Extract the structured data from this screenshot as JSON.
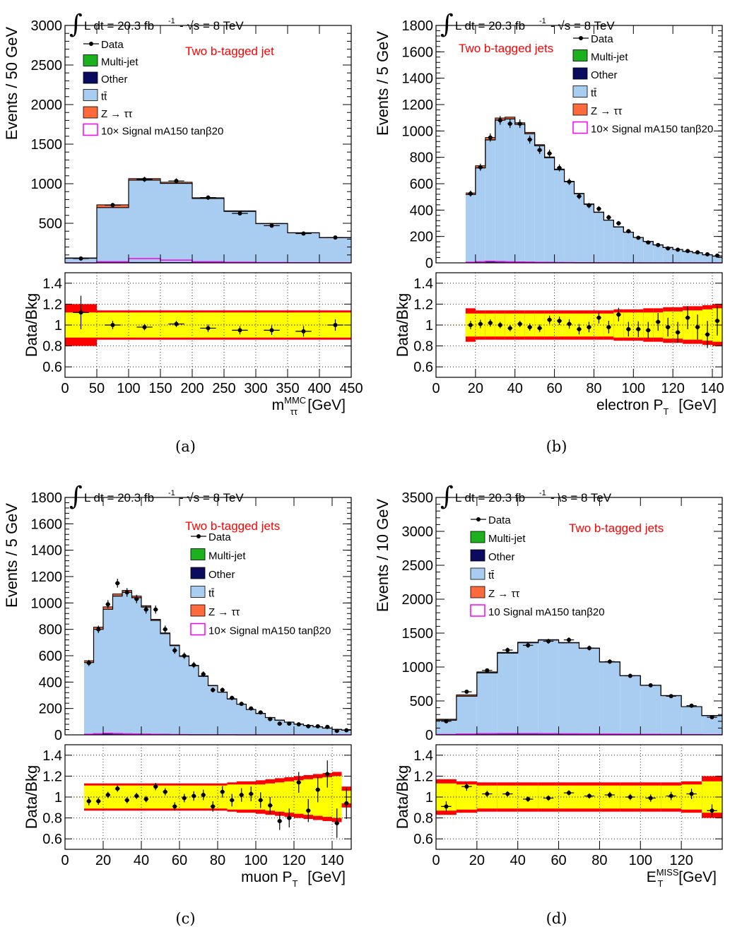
{
  "colors": {
    "ttbar": "#a8cdf0",
    "ztautau": "#ff6a3d",
    "multijet": "#1db21d",
    "other": "#0a0a5e",
    "signal": "#ff00ff",
    "band_outer": "#ff0000",
    "band_inner": "#ffff00",
    "title_red": "#ff0000"
  },
  "chart_data": [
    {
      "id": "a",
      "type": "bar",
      "caption": "(a)",
      "lumi_label": "L dt = 20.3 fb",
      "lumi_exp": "-1",
      "sqrt_label": "-  √s = 8 TeV",
      "tag_label": "Two b-tagged jet",
      "ylabel": "Events / 50 GeV",
      "ratio_ylabel": "Data/Bkg",
      "xlabel": "m",
      "xlabel_sup": "MMC",
      "xlabel_sub": "ττ",
      "xlabel_unit": "[GeV]",
      "xlim": [
        0,
        450
      ],
      "ylim": [
        0,
        3000
      ],
      "yticks": [
        500,
        1000,
        1500,
        2000,
        2500,
        3000
      ],
      "xticks": [
        0,
        50,
        100,
        150,
        200,
        250,
        300,
        350,
        400,
        450
      ],
      "ratio_ylim": [
        0.5,
        1.5
      ],
      "ratio_yticks": [
        0.6,
        0.8,
        1,
        1.2,
        1.4
      ],
      "legend": {
        "data": "Data",
        "multijet": "Multi-jet",
        "other": "Other",
        "ttbar": "tt̄",
        "ztautau": "Z → ττ",
        "signal": "10× Signal mA150 tanβ20"
      },
      "edges": [
        0,
        50,
        100,
        150,
        200,
        250,
        300,
        350,
        400,
        450
      ],
      "ttbar": [
        55,
        690,
        1035,
        995,
        805,
        645,
        490,
        375,
        315
      ],
      "ztautau": [
        5,
        35,
        20,
        15,
        10,
        6,
        4,
        3,
        2
      ],
      "other": [
        3,
        8,
        10,
        9,
        8,
        6,
        5,
        4,
        3
      ],
      "signal": [
        0,
        15,
        55,
        35,
        15,
        8,
        4,
        2,
        1
      ],
      "data_x": [
        25,
        75,
        125,
        175,
        225,
        275,
        325,
        375,
        425
      ],
      "data_y": [
        55,
        730,
        1055,
        1035,
        825,
        625,
        470,
        370,
        320
      ],
      "ratio": [
        1.12,
        1.0,
        0.98,
        1.01,
        0.97,
        0.95,
        0.95,
        0.94,
        1.0
      ],
      "ratio_err": [
        0.16,
        0.04,
        0.03,
        0.03,
        0.035,
        0.04,
        0.045,
        0.05,
        0.055
      ],
      "band_inner": [
        0.12,
        0.12,
        0.12,
        0.12,
        0.12,
        0.12,
        0.12,
        0.12,
        0.12
      ],
      "band_outer": [
        0.2,
        0.14,
        0.14,
        0.14,
        0.14,
        0.14,
        0.14,
        0.14,
        0.14
      ]
    },
    {
      "id": "b",
      "type": "bar",
      "caption": "(b)",
      "lumi_label": "L dt = 20.3 fb",
      "lumi_exp": "-1",
      "sqrt_label": "-  √s = 8 TeV",
      "tag_label": "Two b-tagged jets",
      "ylabel": "Events / 5 GeV",
      "ratio_ylabel": "Data/Bkg",
      "xlabel": "electron P",
      "xlabel_sup": "",
      "xlabel_sub": "T",
      "xlabel_unit": "[GeV]",
      "xlim": [
        0,
        145
      ],
      "ylim": [
        0,
        1800
      ],
      "yticks": [
        0,
        200,
        400,
        600,
        800,
        1000,
        1200,
        1400,
        1600,
        1800
      ],
      "xticks": [
        0,
        20,
        40,
        60,
        80,
        100,
        120,
        140
      ],
      "ratio_ylim": [
        0.5,
        1.5
      ],
      "ratio_yticks": [
        0.6,
        0.8,
        1,
        1.2,
        1.4
      ],
      "legend": {
        "data": "Data",
        "multijet": "Multi-jet",
        "other": "Other",
        "ttbar": "tt̄",
        "ztautau": "Z → ττ",
        "signal": "10× Signal mA150 tanβ20"
      },
      "edges": [
        15,
        20,
        25,
        30,
        35,
        40,
        45,
        50,
        55,
        60,
        65,
        70,
        75,
        80,
        85,
        90,
        95,
        100,
        105,
        110,
        115,
        120,
        125,
        130,
        135,
        140,
        145
      ],
      "ttbar": [
        510,
        710,
        920,
        1070,
        1080,
        1040,
        970,
        880,
        790,
        700,
        610,
        520,
        440,
        380,
        320,
        270,
        230,
        190,
        160,
        135,
        115,
        100,
        85,
        75,
        60,
        50
      ],
      "ztautau": [
        12,
        16,
        18,
        16,
        14,
        12,
        10,
        8,
        6,
        5,
        4,
        3,
        3,
        2,
        2,
        2,
        1,
        1,
        1,
        1,
        1,
        1,
        1,
        1,
        1,
        1
      ],
      "other": [
        8,
        10,
        12,
        12,
        11,
        10,
        9,
        8,
        7,
        6,
        5,
        4,
        4,
        3,
        3,
        2,
        2,
        2,
        2,
        1,
        1,
        1,
        1,
        1,
        1,
        1
      ],
      "signal": [
        5,
        9,
        12,
        10,
        8,
        6,
        5,
        4,
        3,
        2,
        2,
        1,
        1,
        1,
        1,
        1,
        0,
        0,
        0,
        0,
        0,
        0,
        0,
        0,
        0,
        0
      ],
      "data_x": [
        17.5,
        22.5,
        27.5,
        32.5,
        37.5,
        42.5,
        47.5,
        52.5,
        57.5,
        62.5,
        67.5,
        72.5,
        77.5,
        82.5,
        87.5,
        92.5,
        97.5,
        102.5,
        107.5,
        112.5,
        117.5,
        122.5,
        127.5,
        132.5,
        137.5,
        142.5
      ],
      "data_y": [
        525,
        725,
        950,
        1080,
        1055,
        1055,
        935,
        855,
        830,
        720,
        615,
        505,
        435,
        410,
        345,
        300,
        240,
        190,
        155,
        135,
        110,
        100,
        90,
        80,
        65,
        55
      ],
      "ratio": [
        1.0,
        1.01,
        1.02,
        1.0,
        0.97,
        1.01,
        0.98,
        0.97,
        1.05,
        1.04,
        1.01,
        0.96,
        0.98,
        1.07,
        0.98,
        1.1,
        0.96,
        0.96,
        0.95,
        1.03,
        0.98,
        0.93,
        1.07,
        0.98,
        0.91,
        1.04
      ],
      "ratio_err": [
        0.04,
        0.04,
        0.035,
        0.03,
        0.03,
        0.03,
        0.035,
        0.035,
        0.04,
        0.04,
        0.045,
        0.05,
        0.05,
        0.055,
        0.06,
        0.065,
        0.07,
        0.075,
        0.08,
        0.085,
        0.09,
        0.1,
        0.11,
        0.12,
        0.13,
        0.14
      ],
      "band_inner": [
        0.11,
        0.11,
        0.11,
        0.11,
        0.11,
        0.11,
        0.11,
        0.11,
        0.11,
        0.11,
        0.11,
        0.11,
        0.11,
        0.11,
        0.11,
        0.12,
        0.12,
        0.12,
        0.12,
        0.12,
        0.13,
        0.13,
        0.14,
        0.14,
        0.15,
        0.16
      ],
      "band_outer": [
        0.16,
        0.14,
        0.14,
        0.14,
        0.14,
        0.14,
        0.14,
        0.14,
        0.14,
        0.14,
        0.14,
        0.14,
        0.14,
        0.14,
        0.14,
        0.15,
        0.15,
        0.15,
        0.16,
        0.16,
        0.17,
        0.17,
        0.18,
        0.18,
        0.19,
        0.2
      ]
    },
    {
      "id": "c",
      "type": "bar",
      "caption": "(c)",
      "lumi_label": "L dt = 20.3 fb",
      "lumi_exp": "-1",
      "sqrt_label": "-  √s = 8 TeV",
      "tag_label": "Two b-tagged jets",
      "ylabel": "Events / 5 GeV",
      "ratio_ylabel": "Data/Bkg",
      "xlabel": "muon P",
      "xlabel_sup": "",
      "xlabel_sub": "T",
      "xlabel_unit": "[GeV]",
      "xlim": [
        0,
        150
      ],
      "ylim": [
        0,
        1800
      ],
      "yticks": [
        0,
        200,
        400,
        600,
        800,
        1000,
        1200,
        1400,
        1600,
        1800
      ],
      "xticks": [
        0,
        20,
        40,
        60,
        80,
        100,
        120,
        140
      ],
      "ratio_ylim": [
        0.5,
        1.5
      ],
      "ratio_yticks": [
        0.6,
        0.8,
        1,
        1.2,
        1.4
      ],
      "legend": {
        "data": "Data",
        "multijet": "Multi-jet",
        "other": "Other",
        "ttbar": "tt̄",
        "ztautau": "Z → ττ",
        "signal": "10× Signal mA150 tanβ20"
      },
      "edges": [
        10,
        15,
        20,
        25,
        30,
        35,
        40,
        45,
        50,
        55,
        60,
        65,
        70,
        75,
        80,
        85,
        90,
        95,
        100,
        105,
        110,
        115,
        120,
        125,
        130,
        135,
        140,
        145,
        150
      ],
      "ttbar": [
        540,
        790,
        940,
        1040,
        1070,
        1030,
        960,
        860,
        760,
        670,
        590,
        520,
        440,
        370,
        320,
        270,
        230,
        190,
        160,
        130,
        110,
        95,
        80,
        70,
        60,
        50,
        40,
        35
      ],
      "ztautau": [
        14,
        16,
        18,
        16,
        14,
        12,
        10,
        8,
        6,
        5,
        4,
        3,
        3,
        2,
        2,
        2,
        1,
        1,
        1,
        1,
        1,
        1,
        1,
        1,
        1,
        1,
        1,
        1
      ],
      "other": [
        8,
        10,
        12,
        12,
        11,
        10,
        9,
        8,
        7,
        6,
        5,
        4,
        4,
        3,
        3,
        2,
        2,
        2,
        2,
        1,
        1,
        1,
        1,
        1,
        1,
        1,
        1,
        1
      ],
      "signal": [
        5,
        9,
        12,
        10,
        8,
        6,
        5,
        4,
        3,
        2,
        2,
        1,
        1,
        1,
        1,
        1,
        0,
        0,
        0,
        0,
        0,
        0,
        0,
        0,
        0,
        0,
        0,
        0
      ],
      "data_x": [
        12.5,
        17.5,
        22.5,
        27.5,
        32.5,
        37.5,
        42.5,
        47.5,
        52.5,
        57.5,
        62.5,
        67.5,
        72.5,
        77.5,
        82.5,
        87.5,
        92.5,
        97.5,
        102.5,
        107.5,
        112.5,
        117.5,
        122.5,
        127.5,
        132.5,
        137.5,
        142.5,
        147.5
      ],
      "data_y": [
        545,
        800,
        990,
        1150,
        1080,
        1030,
        950,
        950,
        800,
        640,
        600,
        530,
        460,
        340,
        340,
        280,
        235,
        200,
        170,
        120,
        85,
        85,
        80,
        65,
        65,
        60,
        30,
        35
      ],
      "ratio": [
        0.96,
        0.96,
        1.02,
        1.08,
        0.97,
        1.01,
        0.98,
        1.1,
        1.05,
        0.91,
        0.99,
        1.01,
        1.02,
        0.91,
        1.05,
        0.97,
        1.02,
        1.03,
        0.97,
        0.92,
        0.77,
        0.8,
        1.14,
        0.87,
        1.07,
        1.22,
        0.75,
        0.94
      ],
      "ratio_err": [
        0.04,
        0.035,
        0.03,
        0.03,
        0.03,
        0.03,
        0.03,
        0.035,
        0.035,
        0.04,
        0.04,
        0.045,
        0.05,
        0.05,
        0.055,
        0.06,
        0.065,
        0.07,
        0.075,
        0.08,
        0.085,
        0.09,
        0.1,
        0.11,
        0.12,
        0.13,
        0.14,
        0.15
      ],
      "band_inner": [
        0.11,
        0.11,
        0.11,
        0.11,
        0.11,
        0.11,
        0.11,
        0.11,
        0.11,
        0.11,
        0.11,
        0.11,
        0.11,
        0.11,
        0.11,
        0.12,
        0.12,
        0.12,
        0.12,
        0.13,
        0.14,
        0.15,
        0.16,
        0.17,
        0.18,
        0.19,
        0.2,
        0.06
      ],
      "band_outer": [
        0.13,
        0.13,
        0.13,
        0.13,
        0.13,
        0.13,
        0.13,
        0.13,
        0.13,
        0.13,
        0.13,
        0.13,
        0.13,
        0.13,
        0.13,
        0.14,
        0.15,
        0.15,
        0.16,
        0.17,
        0.18,
        0.19,
        0.2,
        0.21,
        0.22,
        0.23,
        0.24,
        0.1
      ]
    },
    {
      "id": "d",
      "type": "bar",
      "caption": "(d)",
      "lumi_label": "L dt = 20.3 fb",
      "lumi_exp": "-1",
      "sqrt_label": "-  \\s = 8 TeV",
      "tag_label": "Two b-tagged jets",
      "ylabel": "Events / 10 GeV",
      "ratio_ylabel": "Data/Bkg",
      "xlabel": "E",
      "xlabel_sup": "MISS",
      "xlabel_sub": "T",
      "xlabel_unit": "[GeV]",
      "xlim": [
        0,
        140
      ],
      "ylim": [
        0,
        3500
      ],
      "yticks": [
        0,
        500,
        1000,
        1500,
        2000,
        2500,
        3000,
        3500
      ],
      "xticks": [
        0,
        20,
        40,
        60,
        80,
        100,
        120
      ],
      "ratio_ylim": [
        0.5,
        1.5
      ],
      "ratio_yticks": [
        0.6,
        0.8,
        1,
        1.2,
        1.4
      ],
      "legend": {
        "data": "Data",
        "multijet": "Multi-jet",
        "other": "Other",
        "ttbar": "tt̄",
        "ztautau": "Z → ττ",
        "signal": "10   Signal mA150 tanβ20"
      },
      "edges": [
        0,
        10,
        20,
        30,
        40,
        50,
        60,
        70,
        80,
        90,
        100,
        110,
        120,
        130,
        140
      ],
      "ttbar": [
        210,
        560,
        900,
        1190,
        1340,
        1380,
        1340,
        1260,
        1060,
        860,
        720,
        570,
        410,
        280
      ],
      "ztautau": [
        15,
        20,
        15,
        10,
        8,
        6,
        5,
        4,
        3,
        2,
        2,
        1,
        1,
        1
      ],
      "other": [
        6,
        10,
        14,
        16,
        18,
        18,
        17,
        16,
        14,
        12,
        10,
        8,
        6,
        4
      ],
      "signal": [
        5,
        12,
        18,
        20,
        20,
        18,
        16,
        14,
        12,
        10,
        8,
        6,
        4,
        3
      ],
      "data_x": [
        5,
        15,
        25,
        35,
        45,
        55,
        65,
        75,
        85,
        95,
        105,
        115,
        125,
        135
      ],
      "data_y": [
        200,
        635,
        950,
        1250,
        1320,
        1380,
        1400,
        1280,
        1080,
        870,
        730,
        570,
        430,
        260
      ],
      "ratio": [
        0.91,
        1.1,
        1.03,
        1.03,
        0.98,
        0.99,
        1.04,
        1.01,
        1.02,
        1.0,
        0.99,
        1.01,
        1.03,
        0.87
      ],
      "ratio_err": [
        0.05,
        0.04,
        0.03,
        0.025,
        0.025,
        0.025,
        0.025,
        0.025,
        0.03,
        0.03,
        0.035,
        0.04,
        0.05,
        0.06
      ],
      "band_inner": [
        0.13,
        0.12,
        0.11,
        0.11,
        0.11,
        0.11,
        0.11,
        0.11,
        0.11,
        0.11,
        0.11,
        0.11,
        0.12,
        0.15
      ],
      "band_outer": [
        0.17,
        0.15,
        0.14,
        0.14,
        0.14,
        0.14,
        0.14,
        0.14,
        0.14,
        0.14,
        0.14,
        0.14,
        0.15,
        0.2
      ]
    }
  ]
}
